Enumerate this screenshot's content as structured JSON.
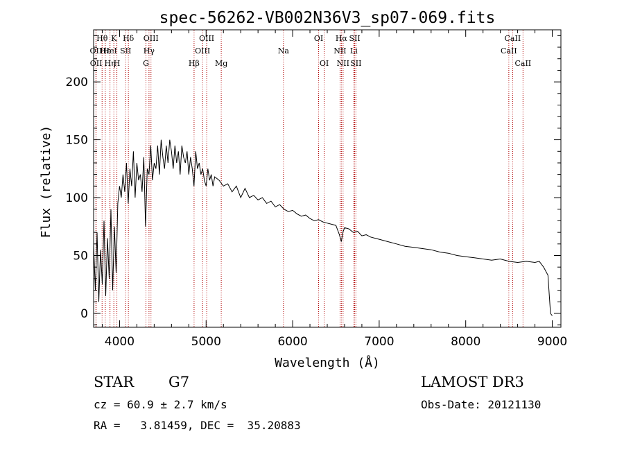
{
  "chart_data": {
    "type": "line",
    "title": "spec-56262-VB002N36V3_sp07-069.fits",
    "xlabel": "Wavelength (Å)",
    "ylabel": "Flux (relative)",
    "xlim": [
      3700,
      9100
    ],
    "ylim": [
      -12,
      245
    ],
    "xticks": [
      4000,
      5000,
      6000,
      7000,
      8000,
      9000
    ],
    "yticks": [
      0,
      50,
      100,
      150,
      200
    ],
    "series": [
      {
        "name": "flux",
        "color": "#000000",
        "x": [
          3700,
          3720,
          3740,
          3760,
          3780,
          3800,
          3820,
          3840,
          3860,
          3880,
          3900,
          3920,
          3940,
          3960,
          3980,
          4000,
          4020,
          4040,
          4060,
          4080,
          4100,
          4120,
          4140,
          4160,
          4180,
          4200,
          4220,
          4240,
          4260,
          4280,
          4300,
          4320,
          4340,
          4360,
          4380,
          4400,
          4420,
          4440,
          4460,
          4480,
          4500,
          4520,
          4540,
          4560,
          4580,
          4600,
          4620,
          4640,
          4660,
          4680,
          4700,
          4720,
          4740,
          4760,
          4780,
          4800,
          4820,
          4840,
          4860,
          4880,
          4900,
          4920,
          4940,
          4960,
          4980,
          5000,
          5020,
          5040,
          5060,
          5080,
          5100,
          5150,
          5200,
          5250,
          5300,
          5350,
          5400,
          5450,
          5500,
          5550,
          5600,
          5650,
          5700,
          5750,
          5800,
          5850,
          5900,
          5950,
          6000,
          6050,
          6100,
          6150,
          6200,
          6250,
          6300,
          6350,
          6400,
          6450,
          6500,
          6540,
          6563,
          6580,
          6600,
          6650,
          6700,
          6750,
          6800,
          6850,
          6900,
          6950,
          7000,
          7100,
          7200,
          7300,
          7400,
          7500,
          7600,
          7700,
          7800,
          7900,
          8000,
          8100,
          8200,
          8300,
          8400,
          8500,
          8600,
          8700,
          8800,
          8850,
          8900,
          8950,
          8980,
          9000
        ],
        "y": [
          60,
          20,
          70,
          10,
          55,
          25,
          80,
          15,
          65,
          30,
          90,
          20,
          75,
          35,
          95,
          110,
          100,
          120,
          105,
          130,
          95,
          125,
          110,
          140,
          100,
          130,
          115,
          120,
          105,
          135,
          75,
          125,
          120,
          145,
          115,
          130,
          125,
          145,
          120,
          150,
          135,
          125,
          145,
          130,
          150,
          140,
          125,
          145,
          130,
          140,
          120,
          145,
          135,
          130,
          140,
          120,
          135,
          125,
          110,
          140,
          125,
          130,
          120,
          125,
          115,
          110,
          125,
          115,
          120,
          110,
          118,
          115,
          110,
          112,
          105,
          110,
          100,
          108,
          100,
          102,
          98,
          100,
          95,
          97,
          92,
          94,
          90,
          88,
          89,
          86,
          84,
          85,
          82,
          80,
          81,
          79,
          78,
          77,
          76,
          68,
          62,
          70,
          74,
          73,
          70,
          71,
          67,
          68,
          66,
          65,
          64,
          62,
          60,
          58,
          57,
          56,
          55,
          53,
          52,
          50,
          49,
          48,
          47,
          46,
          47,
          45,
          44,
          45,
          44,
          45,
          40,
          33,
          0,
          -2
        ]
      }
    ],
    "line_ids": [
      {
        "label": "Hθ",
        "wave": 3798,
        "row": 0
      },
      {
        "label": "OII",
        "wave": 3727,
        "row": 1
      },
      {
        "label": "OII",
        "wave": 3729,
        "row": 2
      },
      {
        "label": "Hε",
        "wave": 3835,
        "row": 1
      },
      {
        "label": "Hη",
        "wave": 3889,
        "row": 2
      },
      {
        "label": "K",
        "wave": 3934,
        "row": 0
      },
      {
        "label": "HeI",
        "wave": 3889,
        "row": 1
      },
      {
        "label": "H",
        "wave": 3969,
        "row": 2
      },
      {
        "label": "SII",
        "wave": 4070,
        "row": 1
      },
      {
        "label": "Hδ",
        "wave": 4102,
        "row": 0
      },
      {
        "label": "OIII",
        "wave": 4363,
        "row": 0
      },
      {
        "label": "Hγ",
        "wave": 4340,
        "row": 1
      },
      {
        "label": "G",
        "wave": 4305,
        "row": 2
      },
      {
        "label": "Hβ",
        "wave": 4861,
        "row": 2
      },
      {
        "label": "OIII",
        "wave": 5007,
        "row": 0
      },
      {
        "label": "OIII",
        "wave": 4959,
        "row": 1
      },
      {
        "label": "Mg",
        "wave": 5175,
        "row": 2
      },
      {
        "label": "Na",
        "wave": 5894,
        "row": 1
      },
      {
        "label": "OI",
        "wave": 6300,
        "row": 0
      },
      {
        "label": "OI",
        "wave": 6364,
        "row": 2
      },
      {
        "label": "Hα",
        "wave": 6563,
        "row": 0
      },
      {
        "label": "NII",
        "wave": 6548,
        "row": 1
      },
      {
        "label": "NII",
        "wave": 6583,
        "row": 2
      },
      {
        "label": "SII",
        "wave": 6717,
        "row": 0
      },
      {
        "label": "Li",
        "wave": 6707,
        "row": 1
      },
      {
        "label": "SII",
        "wave": 6731,
        "row": 2
      },
      {
        "label": "CaII",
        "wave": 8542,
        "row": 0
      },
      {
        "label": "CaII",
        "wave": 8498,
        "row": 1
      },
      {
        "label": "CaII",
        "wave": 8662,
        "row": 2
      }
    ]
  },
  "info": {
    "class_label": "STAR",
    "subclass": "G7",
    "survey": "LAMOST DR3",
    "redshift": "cz = 60.9 ± 2.7 km/s",
    "obs_date": "Obs-Date: 20121130",
    "coords": "RA =   3.81459, DEC =  35.20883"
  },
  "colors": {
    "line_marker": "#b00000",
    "spectrum": "#000000"
  }
}
